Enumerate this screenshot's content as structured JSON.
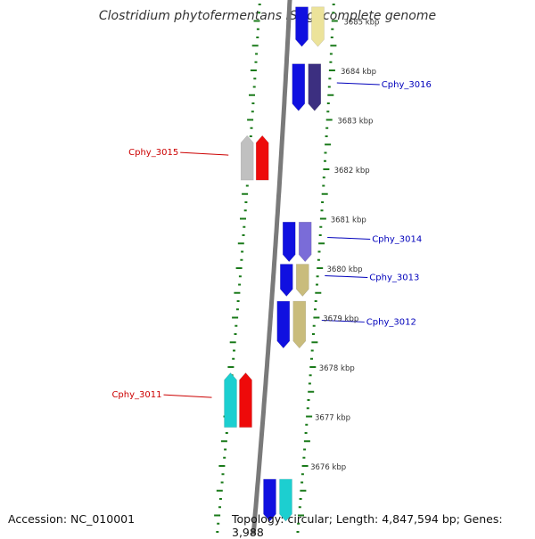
{
  "title": "Clostridium phytofermentans ISDg, complete genome",
  "footer": {
    "accession": "Accession: NC_010001",
    "summary": "Topology: circular; Length: 4,847,594 bp; Genes: 3,988"
  },
  "scale_labels": [
    {
      "text": "3685 kbp",
      "pos": 3685.0
    },
    {
      "text": "3684 kbp",
      "pos": 3684.0
    },
    {
      "text": "3683 kbp",
      "pos": 3683.0
    },
    {
      "text": "3682 kbp",
      "pos": 3682.0
    },
    {
      "text": "3681 kbp",
      "pos": 3681.0
    },
    {
      "text": "3680 kbp",
      "pos": 3680.0
    },
    {
      "text": "3679 kbp",
      "pos": 3679.0
    },
    {
      "text": "3678 kbp",
      "pos": 3678.0
    },
    {
      "text": "3677 kbp",
      "pos": 3677.0
    },
    {
      "text": "3676 kbp",
      "pos": 3676.0
    }
  ],
  "genes": [
    {
      "label": "",
      "strand": "reverse",
      "start": 3684.5,
      "end": 3685.3,
      "colors": [
        "#1010e0",
        "#ece39a"
      ]
    },
    {
      "label": "Cphy_3016",
      "strand": "reverse",
      "start": 3683.2,
      "end": 3684.15,
      "colors": [
        "#1010e0",
        "#3c2f80"
      ]
    },
    {
      "label": "Cphy_3015",
      "strand": "forward",
      "start": 3681.8,
      "end": 3682.7,
      "colors": [
        "#c0c0c0",
        "#ee0a0a"
      ]
    },
    {
      "label": "Cphy_3014",
      "strand": "reverse",
      "start": 3680.15,
      "end": 3680.95,
      "colors": [
        "#1010e0",
        "#7a6cd8"
      ]
    },
    {
      "label": "Cphy_3013",
      "strand": "reverse",
      "start": 3679.45,
      "end": 3680.1,
      "colors": [
        "#1010e0",
        "#c9bc7c"
      ]
    },
    {
      "label": "Cphy_3012",
      "strand": "reverse",
      "start": 3678.4,
      "end": 3679.35,
      "colors": [
        "#1010e0",
        "#c9bc7c"
      ]
    },
    {
      "label": "Cphy_3011",
      "strand": "forward",
      "start": 3676.8,
      "end": 3677.9,
      "colors": [
        "#1ccfd0",
        "#ee0a0a"
      ]
    },
    {
      "label": "",
      "strand": "reverse",
      "start": 3674.9,
      "end": 3675.75,
      "colors": [
        "#1010e0",
        "#1ccfd0"
      ]
    }
  ],
  "colors": {
    "backbone": "#7a7a7a",
    "ticks": "#1a7a1a",
    "forward_label": "#cc0000",
    "reverse_label": "#0000bb"
  }
}
